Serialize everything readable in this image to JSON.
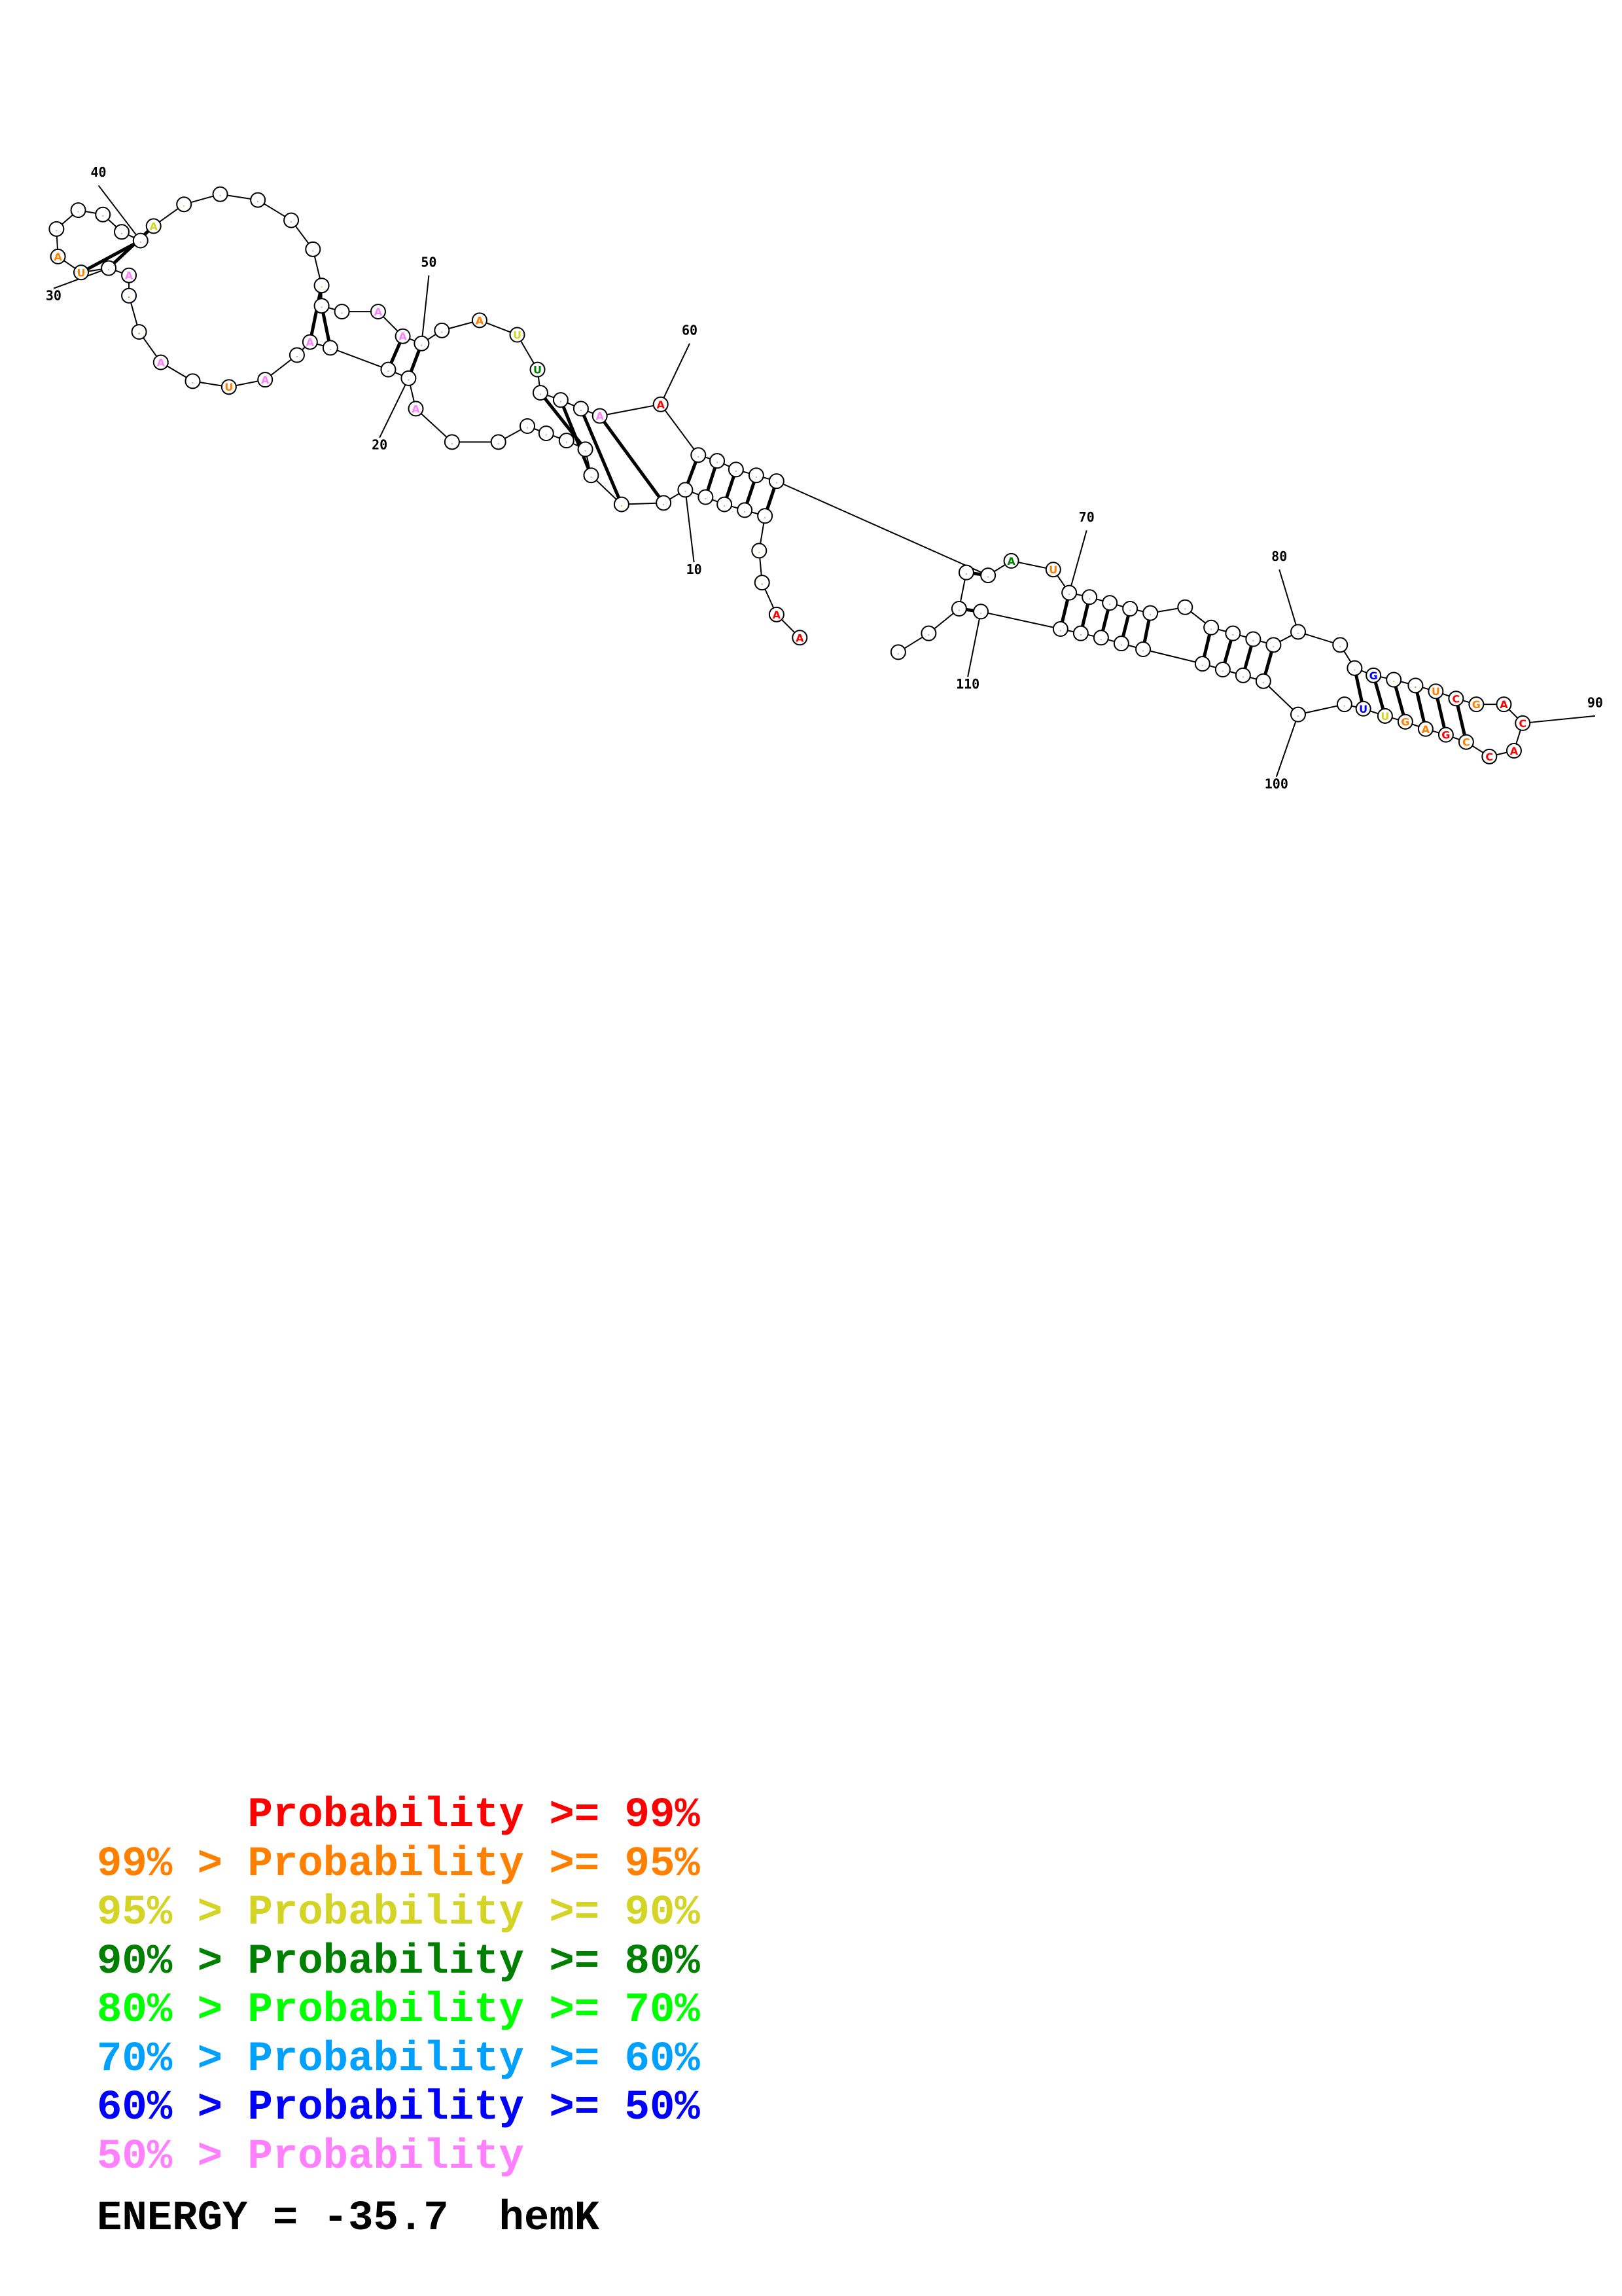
{
  "colors": {
    "p99": "#ff0000",
    "p95": "#ff8000",
    "p90": "#d4d427",
    "p80": "#008000",
    "p70": "#00ff00",
    "p60": "#00a0ff",
    "p50": "#0000ff",
    "plow": "#ff80ff",
    "text": "#000000"
  },
  "position_labels": [
    "10",
    "20",
    "30",
    "40",
    "50",
    "60",
    "70",
    "80",
    "90",
    "100",
    "110"
  ],
  "legend": [
    {
      "text": "      Probability >= 99%",
      "color_key": "p99"
    },
    {
      "text": "99% > Probability >= 95%",
      "color_key": "p95"
    },
    {
      "text": "95% > Probability >= 90%",
      "color_key": "p90"
    },
    {
      "text": "90% > Probability >= 80%",
      "color_key": "p80"
    },
    {
      "text": "80% > Probability >= 70%",
      "color_key": "p70"
    },
    {
      "text": "70% > Probability >= 60%",
      "color_key": "p60"
    },
    {
      "text": "60% > Probability >= 50%",
      "color_key": "p50"
    },
    {
      "text": "50% > Probability",
      "color_key": "plow"
    }
  ],
  "energy_line": "ENERGY = -35.7  hemK"
}
